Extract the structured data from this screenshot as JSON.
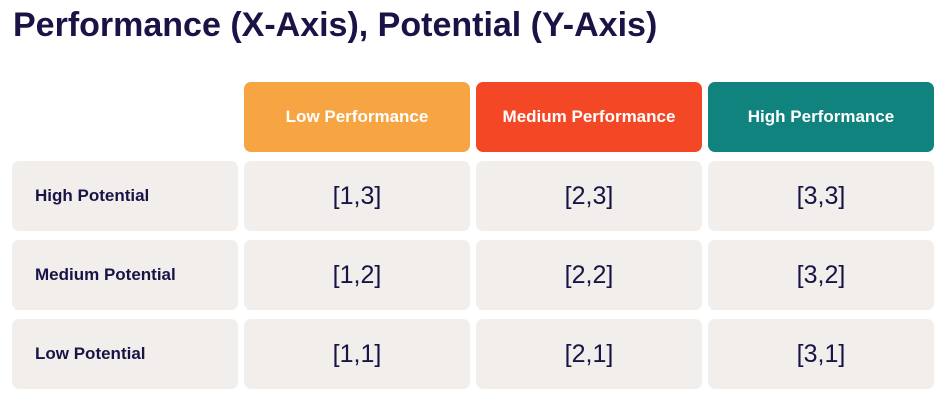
{
  "title": "Performance (X-Axis), Potential (Y-Axis)",
  "columns": [
    {
      "label": "Low Performance",
      "color": "#f7a443"
    },
    {
      "label": "Medium Performance",
      "color": "#f44725"
    },
    {
      "label": "High Performance",
      "color": "#10837f"
    }
  ],
  "rows": [
    {
      "label": "High Potential",
      "cells": [
        "[1,3]",
        "[2,3]",
        "[3,3]"
      ]
    },
    {
      "label": "Medium Potential",
      "cells": [
        "[1,2]",
        "[2,2]",
        "[3,2]"
      ]
    },
    {
      "label": "Low Potential",
      "cells": [
        "[1,1]",
        "[2,1]",
        "[3,1]"
      ]
    }
  ],
  "colors": {
    "text": "#1a1446",
    "cell_background": "#f1eeeb"
  }
}
